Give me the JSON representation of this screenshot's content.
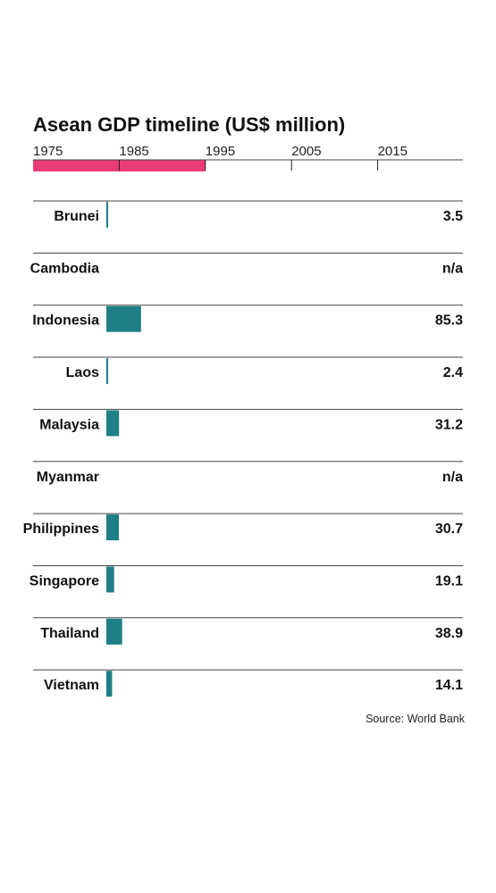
{
  "chart_data": {
    "type": "bar",
    "title": "Asean GDP timeline (US$ million)",
    "timeline": {
      "ticks": [
        "1975",
        "1985",
        "1995",
        "2005",
        "2015"
      ],
      "range": [
        1975,
        2025
      ],
      "highlight": [
        1975,
        1995
      ]
    },
    "categories": [
      "Brunei",
      "Cambodia",
      "Indonesia",
      "Laos",
      "Malaysia",
      "Myanmar",
      "Philippines",
      "Singapore",
      "Thailand",
      "Vietnam"
    ],
    "values": [
      3.5,
      null,
      85.3,
      2.4,
      31.2,
      null,
      30.7,
      19.1,
      38.9,
      14.1
    ],
    "value_labels": [
      "3.5",
      "n/a",
      "85.3",
      "2.4",
      "31.2",
      "n/a",
      "30.7",
      "19.1",
      "38.9",
      "14.1"
    ],
    "xlim": [
      0,
      1000
    ],
    "source": "Source: World Bank"
  },
  "colors": {
    "bar": "#1f7f86",
    "highlight": "#ea3c77",
    "text": "#111111",
    "rule": "#444444"
  }
}
